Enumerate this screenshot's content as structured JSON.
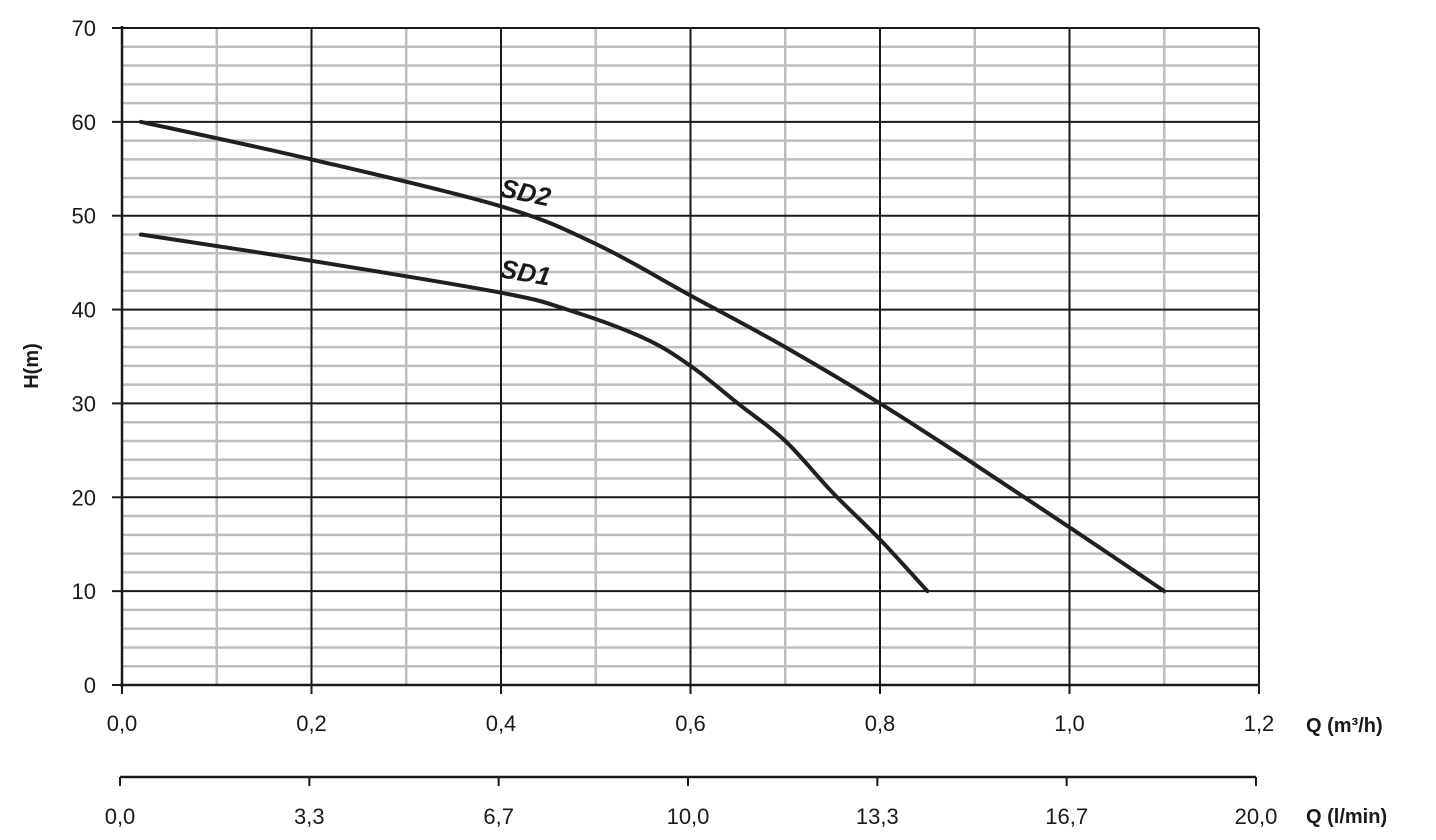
{
  "chart_data": {
    "type": "line",
    "x_axis": {
      "label": "Q (m³/h)",
      "range": [
        0,
        1.2
      ],
      "ticks": [
        "0,0",
        "0,2",
        "0,4",
        "0,6",
        "0,8",
        "1,0",
        "1,2"
      ],
      "minor_step": 0.1
    },
    "x2_axis": {
      "label": "Q (l/min)",
      "range": [
        0,
        20
      ],
      "ticks": [
        "0,0",
        "3,3",
        "6,7",
        "10,0",
        "13,3",
        "16,7",
        "20,0"
      ]
    },
    "y_axis": {
      "label": "H(m)",
      "range": [
        0,
        70
      ],
      "ticks": [
        "0",
        "10",
        "20",
        "30",
        "40",
        "50",
        "60",
        "70"
      ],
      "major_step": 10,
      "minor_step": 2
    },
    "grid": true,
    "series": [
      {
        "name": "SD2",
        "x": [
          0.02,
          0.2,
          0.4,
          0.5,
          0.6,
          0.7,
          0.8,
          0.9,
          1.0,
          1.1
        ],
        "y": [
          60,
          56,
          51,
          47,
          41.5,
          36,
          30,
          23.5,
          16.8,
          10
        ]
      },
      {
        "name": "SD1",
        "x": [
          0.02,
          0.2,
          0.4,
          0.47,
          0.55,
          0.6,
          0.65,
          0.7,
          0.75,
          0.8,
          0.85
        ],
        "y": [
          48,
          45.2,
          41.8,
          40,
          37,
          34,
          30,
          26,
          20.5,
          15.5,
          10
        ]
      }
    ],
    "colors": {
      "line": "#231f20",
      "major_grid": "#1a1a1a",
      "minor_grid": "#bdbdbd"
    }
  }
}
